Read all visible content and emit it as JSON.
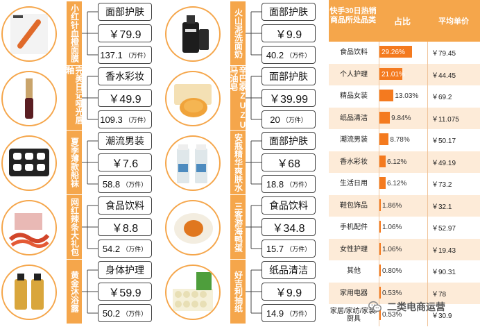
{
  "products_left": [
    {
      "name": "小红针血橙面膜",
      "category": "面部护肤",
      "price": "￥79.9",
      "sales": "137.1",
      "unit": "（万件）",
      "thumb": "mask-icon"
    },
    {
      "name": "完美日记哑光唇釉",
      "category": "香水彩妆",
      "price": "￥49.9",
      "sales": "109.3",
      "unit": "（万件）",
      "thumb": "lip-gloss-icon"
    },
    {
      "name": "夏季薄款船袜",
      "category": "潮流男装",
      "price": "￥7.6",
      "sales": "58.8",
      "unit": "（万件）",
      "thumb": "socks-icon"
    },
    {
      "name": "网红辣条大礼包",
      "category": "食品饮料",
      "price": "￥8.8",
      "sales": "54.2",
      "unit": "（万件）",
      "thumb": "snack-icon"
    },
    {
      "name": "黄金沐浴露",
      "category": "身体护理",
      "price": "￥59.9",
      "sales": "50.2",
      "unit": "（万件）",
      "thumb": "body-wash-icon"
    }
  ],
  "products_right": [
    {
      "name": "火山泥洗面奶",
      "category": "面部护肤",
      "price": "￥9.9",
      "sales": "40.2",
      "unit": "（万件）",
      "thumb": "cleanser-icon"
    },
    {
      "name": "辛巴家ZUZU马油皂",
      "category": "面部护肤",
      "price": "￥39.99",
      "sales": "20",
      "unit": "（万件）",
      "thumb": "soap-icon"
    },
    {
      "name": "安瓶精华爽肤水",
      "category": "面部护肤",
      "price": "￥68",
      "sales": "18.8",
      "unit": "（万件）",
      "thumb": "toner-icon"
    },
    {
      "name": "三客游海鸭蛋",
      "category": "食品饮料",
      "price": "￥34.8",
      "sales": "15.7",
      "unit": "（万件）",
      "thumb": "duck-egg-icon"
    },
    {
      "name": "好吉利抽纸",
      "category": "纸品清洁",
      "price": "￥9.9",
      "sales": "14.9",
      "unit": "（万件）",
      "thumb": "tissue-icon"
    }
  ],
  "table": {
    "header_category": "快手30日热销商品所处品类",
    "header_share": "占比",
    "header_avg_price": "平均单价",
    "rows": [
      {
        "category": "食品饮料",
        "share": "29.26%",
        "share_value": 29.26,
        "avg": "￥79.45"
      },
      {
        "category": "个人护理",
        "share": "21.01%",
        "share_value": 21.01,
        "avg": "￥44.45"
      },
      {
        "category": "精品女装",
        "share": "13.03%",
        "share_value": 13.03,
        "avg": "￥69.2"
      },
      {
        "category": "纸品清洁",
        "share": "9.84%",
        "share_value": 9.84,
        "avg": "￥11.075"
      },
      {
        "category": "潮流男装",
        "share": "8.78%",
        "share_value": 8.78,
        "avg": "￥50.17"
      },
      {
        "category": "香水彩妆",
        "share": "6.12%",
        "share_value": 6.12,
        "avg": "￥49.19"
      },
      {
        "category": "生活日用",
        "share": "6.12%",
        "share_value": 6.12,
        "avg": "￥73.2"
      },
      {
        "category": "鞋包饰品",
        "share": "1.86%",
        "share_value": 1.86,
        "avg": "￥32.1"
      },
      {
        "category": "手机配件",
        "share": "1.06%",
        "share_value": 1.06,
        "avg": "￥52.97"
      },
      {
        "category": "女性护理",
        "share": "1.06%",
        "share_value": 1.06,
        "avg": "￥19.43"
      },
      {
        "category": "其他",
        "share": "0.80%",
        "share_value": 0.8,
        "avg": "￥90.31"
      },
      {
        "category": "家用电器",
        "share": "0.53%",
        "share_value": 0.53,
        "avg": "￥78"
      },
      {
        "category": "家居/家纺/家装/厨具",
        "share": "0.53%",
        "share_value": 0.53,
        "avg": "￥30.9"
      }
    ]
  },
  "watermark": {
    "text": "二类电商运营",
    "icon": "wechat-icon"
  },
  "colors": {
    "accent": "#f5a64b",
    "bar": "#f47a1f",
    "row_alt": "#fdebd8"
  }
}
